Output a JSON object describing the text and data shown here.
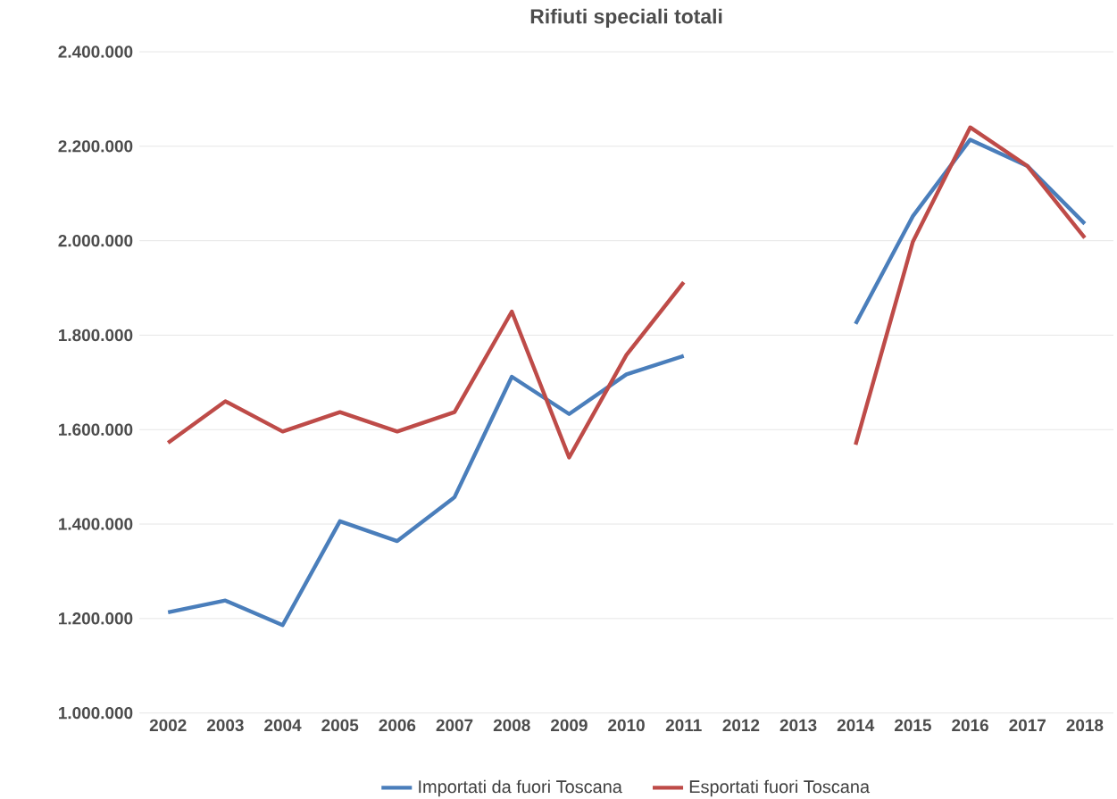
{
  "chart_data": {
    "type": "line",
    "title": "Rifiuti speciali totali",
    "categories": [
      "2002",
      "2003",
      "2004",
      "2005",
      "2006",
      "2007",
      "2008",
      "2009",
      "2010",
      "2011",
      "2012",
      "2013",
      "2014",
      "2015",
      "2016",
      "2017",
      "2018"
    ],
    "series": [
      {
        "name": "Importati da fuori Toscana",
        "color": "#4a7ebb",
        "values": [
          1213000,
          1238000,
          1186000,
          1406000,
          1364000,
          1457000,
          1712000,
          1633000,
          1717000,
          1756000,
          null,
          null,
          1824000,
          2052000,
          2214000,
          2158000,
          2036000
        ]
      },
      {
        "name": "Esportati fuori Toscana",
        "color": "#be4b48",
        "values": [
          1572000,
          1660000,
          1596000,
          1637000,
          1596000,
          1637000,
          1850000,
          1541000,
          1758000,
          1912000,
          null,
          null,
          1568000,
          1998000,
          2240000,
          2158000,
          2006000
        ]
      }
    ],
    "ylim": [
      1000000,
      2400000
    ],
    "yticks": [
      {
        "value": 1000000,
        "label": "1.000.000"
      },
      {
        "value": 1200000,
        "label": "1.200.000"
      },
      {
        "value": 1400000,
        "label": "1.400.000"
      },
      {
        "value": 1600000,
        "label": "1.600.000"
      },
      {
        "value": 1800000,
        "label": "1.800.000"
      },
      {
        "value": 2000000,
        "label": "2.000.000"
      },
      {
        "value": 2200000,
        "label": "2.200.000"
      },
      {
        "value": 2400000,
        "label": "2.400.000"
      }
    ],
    "grid": "y",
    "legend": "bottom",
    "marker": "none",
    "line_style": "solid"
  }
}
